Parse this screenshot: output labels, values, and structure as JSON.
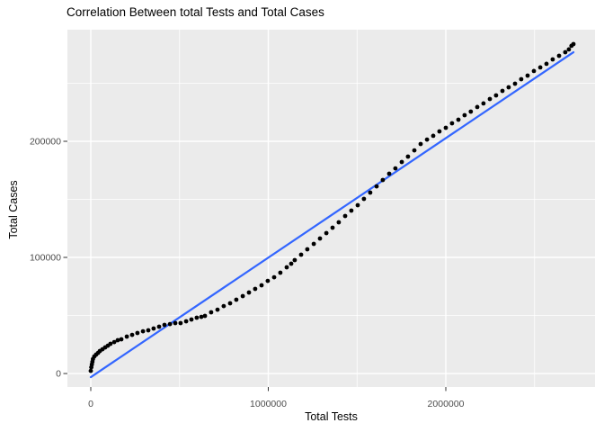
{
  "chart": {
    "title": "Correlation Between total Tests and Total Cases",
    "xlabel": "Total Tests",
    "ylabel": "Total Cases"
  },
  "chart_data": {
    "type": "scatter",
    "title": "Correlation Between total Tests and Total Cases",
    "xlabel": "Total Tests",
    "ylabel": "Total Cases",
    "xlim": [
      -131600,
      2840500
    ],
    "ylim": [
      -11600,
      296100
    ],
    "grid": "on",
    "legend": "none",
    "x_major_ticks": [
      {
        "value": 0,
        "label": "0"
      },
      {
        "value": 1000000,
        "label": "1000000"
      },
      {
        "value": 2000000,
        "label": "2000000"
      }
    ],
    "x_minor_ticks": [
      500000,
      1500000,
      2500000
    ],
    "y_major_ticks": [
      {
        "value": 0,
        "label": "0"
      },
      {
        "value": 100000,
        "label": "100000"
      },
      {
        "value": 200000,
        "label": "200000"
      }
    ],
    "y_minor_ticks": [
      50000,
      150000,
      250000
    ],
    "regression_line": {
      "from": [
        0,
        -3100
      ],
      "to": [
        2719000,
        276700
      ]
    },
    "points": [
      [
        0,
        2300
      ],
      [
        3000,
        5400
      ],
      [
        6000,
        7800
      ],
      [
        9000,
        10100
      ],
      [
        12000,
        12400
      ],
      [
        20000,
        14700
      ],
      [
        30000,
        16300
      ],
      [
        41000,
        17800
      ],
      [
        51000,
        19400
      ],
      [
        66000,
        20900
      ],
      [
        81000,
        22500
      ],
      [
        96000,
        24000
      ],
      [
        111000,
        25600
      ],
      [
        132000,
        27100
      ],
      [
        152000,
        28700
      ],
      [
        172000,
        29500
      ],
      [
        203000,
        31800
      ],
      [
        233000,
        33300
      ],
      [
        263000,
        34900
      ],
      [
        294000,
        36400
      ],
      [
        324000,
        37200
      ],
      [
        354000,
        38800
      ],
      [
        385000,
        40300
      ],
      [
        415000,
        41900
      ],
      [
        446000,
        42600
      ],
      [
        476000,
        43400
      ],
      [
        506000,
        43400
      ],
      [
        537000,
        45000
      ],
      [
        567000,
        46500
      ],
      [
        597000,
        48100
      ],
      [
        623000,
        48800
      ],
      [
        643000,
        49600
      ],
      [
        678000,
        52700
      ],
      [
        714000,
        55000
      ],
      [
        749000,
        58100
      ],
      [
        785000,
        60500
      ],
      [
        820000,
        63600
      ],
      [
        856000,
        66700
      ],
      [
        891000,
        69800
      ],
      [
        926000,
        72900
      ],
      [
        962000,
        76000
      ],
      [
        997000,
        79800
      ],
      [
        1033000,
        82900
      ],
      [
        1068000,
        86800
      ],
      [
        1104000,
        91500
      ],
      [
        1129000,
        94600
      ],
      [
        1149000,
        97700
      ],
      [
        1185000,
        102300
      ],
      [
        1220000,
        107000
      ],
      [
        1256000,
        111600
      ],
      [
        1291000,
        116300
      ],
      [
        1327000,
        120900
      ],
      [
        1362000,
        125600
      ],
      [
        1397000,
        130200
      ],
      [
        1433000,
        135700
      ],
      [
        1468000,
        140300
      ],
      [
        1504000,
        145000
      ],
      [
        1539000,
        150400
      ],
      [
        1574000,
        155800
      ],
      [
        1610000,
        161200
      ],
      [
        1645000,
        166700
      ],
      [
        1681000,
        172100
      ],
      [
        1716000,
        176700
      ],
      [
        1752000,
        182200
      ],
      [
        1787000,
        186800
      ],
      [
        1823000,
        192200
      ],
      [
        1858000,
        197700
      ],
      [
        1894000,
        201500
      ],
      [
        1929000,
        204700
      ],
      [
        1964000,
        208500
      ],
      [
        2000000,
        211600
      ],
      [
        2035000,
        215500
      ],
      [
        2071000,
        218600
      ],
      [
        2106000,
        222500
      ],
      [
        2141000,
        225600
      ],
      [
        2177000,
        229500
      ],
      [
        2212000,
        232600
      ],
      [
        2248000,
        236400
      ],
      [
        2283000,
        239500
      ],
      [
        2319000,
        243400
      ],
      [
        2354000,
        246500
      ],
      [
        2390000,
        249600
      ],
      [
        2425000,
        253500
      ],
      [
        2461000,
        256600
      ],
      [
        2496000,
        260500
      ],
      [
        2532000,
        263600
      ],
      [
        2567000,
        266700
      ],
      [
        2602000,
        270500
      ],
      [
        2638000,
        273600
      ],
      [
        2673000,
        276700
      ],
      [
        2693000,
        279100
      ],
      [
        2708000,
        282200
      ],
      [
        2719000,
        283700
      ]
    ],
    "colors": {
      "panel_bg": "#EBEBEB",
      "grid": "#FFFFFF",
      "point": "#000000",
      "line": "#3366FF",
      "tick_label": "#4D4D4D",
      "tick_mark": "#333333",
      "title": "#000000"
    }
  }
}
